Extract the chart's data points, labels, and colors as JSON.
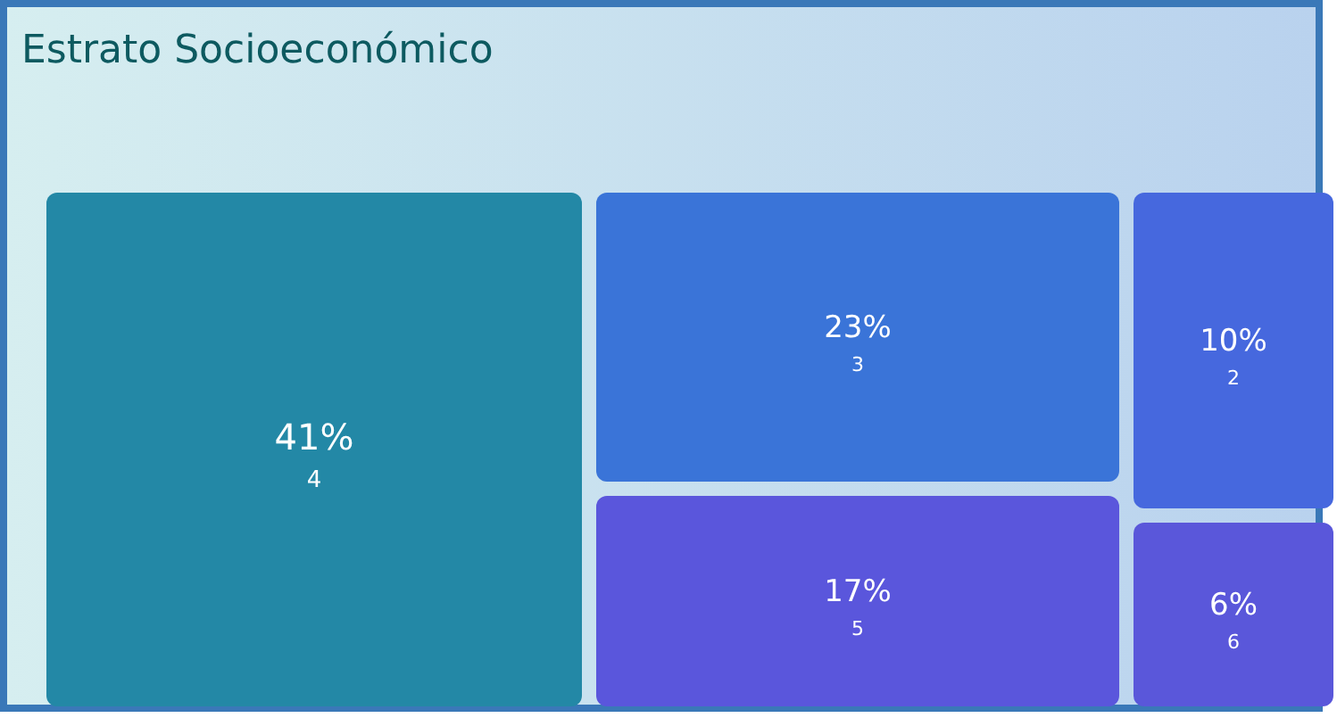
{
  "chart_data": {
    "type": "other",
    "title": "Estrato Socioeconómico",
    "categories": [
      "4",
      "3",
      "5",
      "2",
      "6"
    ],
    "values": [
      41,
      23,
      17,
      10,
      6
    ],
    "value_labels": [
      "41%",
      "23%",
      "17%",
      "10%",
      "6%"
    ],
    "colors": [
      "#2388a6",
      "#3a74d8",
      "#5a56dc",
      "#4668de",
      "#5a57da"
    ]
  }
}
